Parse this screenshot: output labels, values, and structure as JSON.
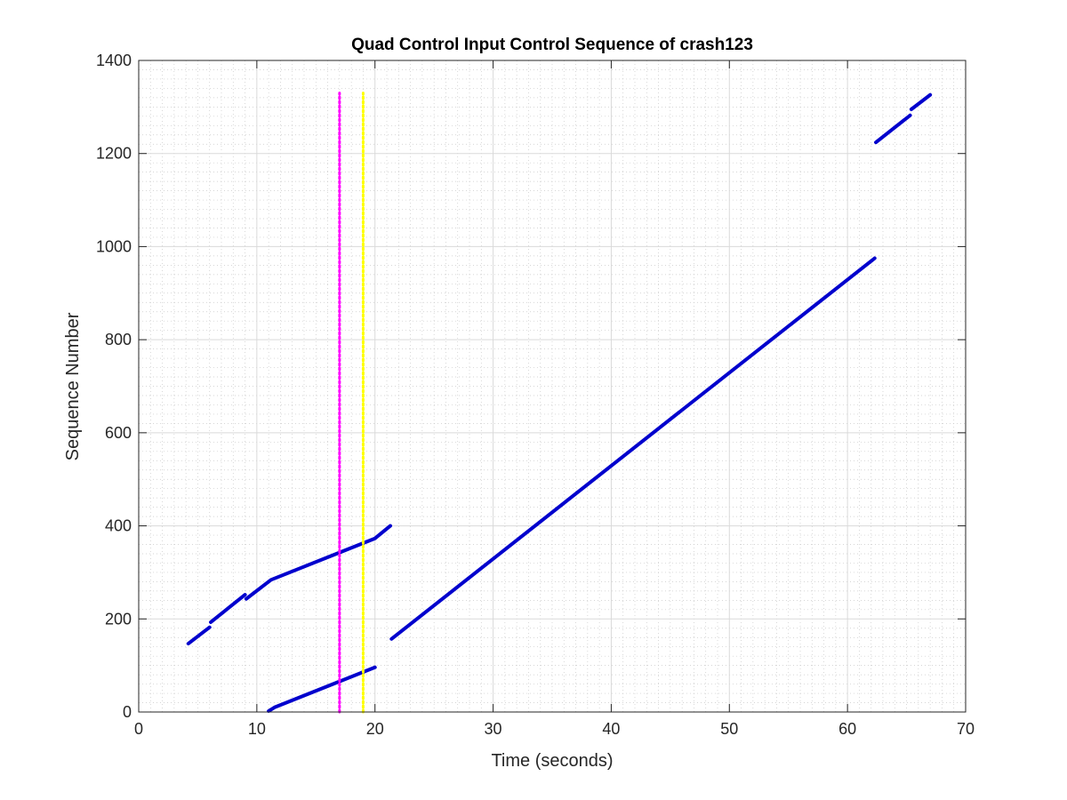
{
  "chart_data": {
    "type": "line",
    "title": "Quad Control Input Control Sequence of crash123",
    "xlabel": "Time (seconds)",
    "ylabel": "Sequence Number",
    "xlim": [
      0,
      70
    ],
    "ylim": [
      0,
      1400
    ],
    "xticks": [
      0,
      10,
      20,
      30,
      40,
      50,
      60,
      70
    ],
    "yticks": [
      0,
      200,
      400,
      600,
      800,
      1000,
      1200,
      1400
    ],
    "grid": "major and minor",
    "series_color": "#0000cd",
    "series": [
      {
        "values": [
          [
            4.2,
            147
          ],
          [
            6.0,
            182
          ]
        ]
      },
      {
        "values": [
          [
            6.1,
            193
          ],
          [
            9.0,
            252
          ]
        ]
      },
      {
        "values": [
          [
            9.1,
            243
          ],
          [
            11.2,
            284
          ],
          [
            20.0,
            373
          ],
          [
            21.3,
            400
          ]
        ]
      },
      {
        "values": [
          [
            11.0,
            2
          ],
          [
            11.5,
            10
          ],
          [
            20.0,
            96
          ]
        ]
      },
      {
        "values": [
          [
            21.4,
            157
          ],
          [
            62.3,
            975
          ]
        ]
      },
      {
        "values": [
          [
            62.4,
            1224
          ],
          [
            65.3,
            1282
          ]
        ]
      },
      {
        "values": [
          [
            65.4,
            1295
          ],
          [
            67.0,
            1326
          ]
        ]
      }
    ],
    "vertical_markers": [
      {
        "x": 17.0,
        "y_range": [
          0,
          1330
        ],
        "color": "#ff00ff"
      },
      {
        "x": 19.0,
        "y_range": [
          0,
          1330
        ],
        "color": "#ffff00"
      }
    ]
  }
}
